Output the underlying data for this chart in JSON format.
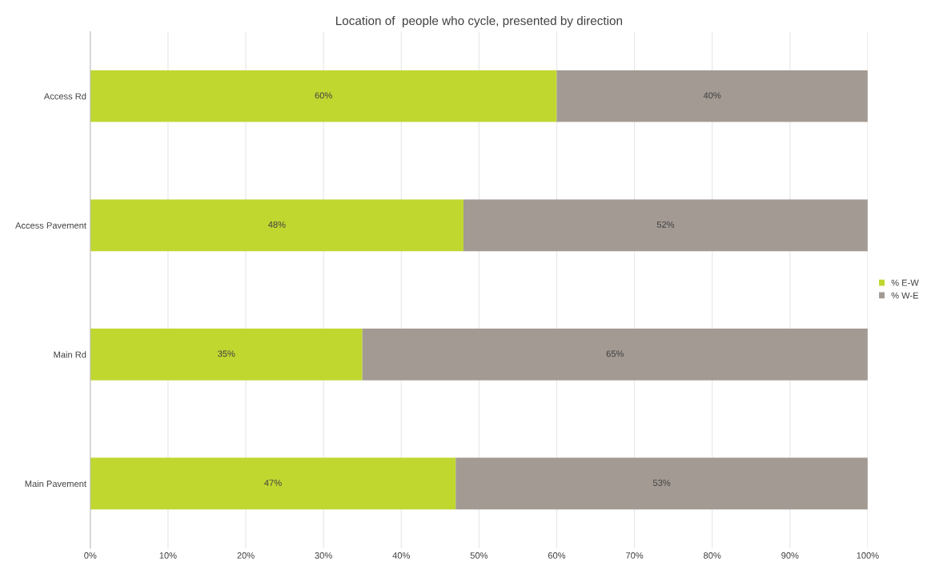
{
  "chart_data": {
    "type": "bar",
    "orientation": "horizontal",
    "stacked": true,
    "title": "Location of  people who cycle, presented by direction",
    "categories": [
      "Access Rd",
      "Access Pavement",
      "Main Rd",
      "Main Pavement"
    ],
    "series": [
      {
        "name": "% E-W",
        "color": "#c0d730",
        "values": [
          60,
          48,
          35,
          47
        ],
        "value_labels": [
          "60%",
          "48%",
          "35%",
          "47%"
        ]
      },
      {
        "name": "% W-E",
        "color": "#a39a93",
        "values": [
          40,
          52,
          65,
          53
        ],
        "value_labels": [
          "40%",
          "52%",
          "65%",
          "53%"
        ]
      }
    ],
    "xlim": [
      0,
      100
    ],
    "xticks": [
      {
        "value": 0,
        "label": "0%"
      },
      {
        "value": 10,
        "label": "10%"
      },
      {
        "value": 20,
        "label": "20%"
      },
      {
        "value": 30,
        "label": "30%"
      },
      {
        "value": 40,
        "label": "40%"
      },
      {
        "value": 50,
        "label": "50%"
      },
      {
        "value": 60,
        "label": "60%"
      },
      {
        "value": 70,
        "label": "70%"
      },
      {
        "value": 80,
        "label": "80%"
      },
      {
        "value": 90,
        "label": "90%"
      },
      {
        "value": 100,
        "label": "100%"
      }
    ],
    "grid": "x",
    "legend": "right"
  }
}
